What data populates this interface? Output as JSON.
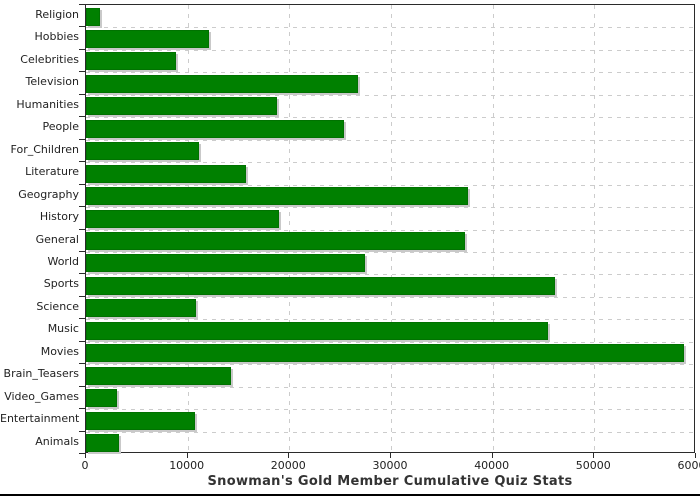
{
  "chart_data": {
    "type": "bar",
    "orientation": "horizontal",
    "title": "Snowman's Gold Member Cumulative Quiz Stats",
    "xlabel": "",
    "ylabel": "",
    "categories": [
      "Religion",
      "Hobbies",
      "Celebrities",
      "Television",
      "Humanities",
      "People",
      "For_Children",
      "Literature",
      "Geography",
      "History",
      "General",
      "World",
      "Sports",
      "Science",
      "Music",
      "Movies",
      "Brain_Teasers",
      "Video_Games",
      "Entertainment",
      "Animals"
    ],
    "values": [
      1400,
      12100,
      8900,
      26800,
      18800,
      25400,
      11100,
      15700,
      37600,
      19000,
      37300,
      27400,
      46100,
      10800,
      45400,
      58800,
      14300,
      3000,
      10700,
      3250
    ],
    "xlim": [
      0,
      60000
    ],
    "xticks": [
      0,
      10000,
      20000,
      30000,
      40000,
      50000,
      60000
    ],
    "grid": "dashed-both-axes",
    "legend": "none",
    "colors": {
      "bar": "#008000",
      "bar_shadow": "#c9c9c9",
      "gridline": "#cccccc",
      "axis": "#2b2b2b",
      "text": "#222222",
      "title": "#333333",
      "background": "#ffffff",
      "bottom_line": "#000000"
    }
  }
}
